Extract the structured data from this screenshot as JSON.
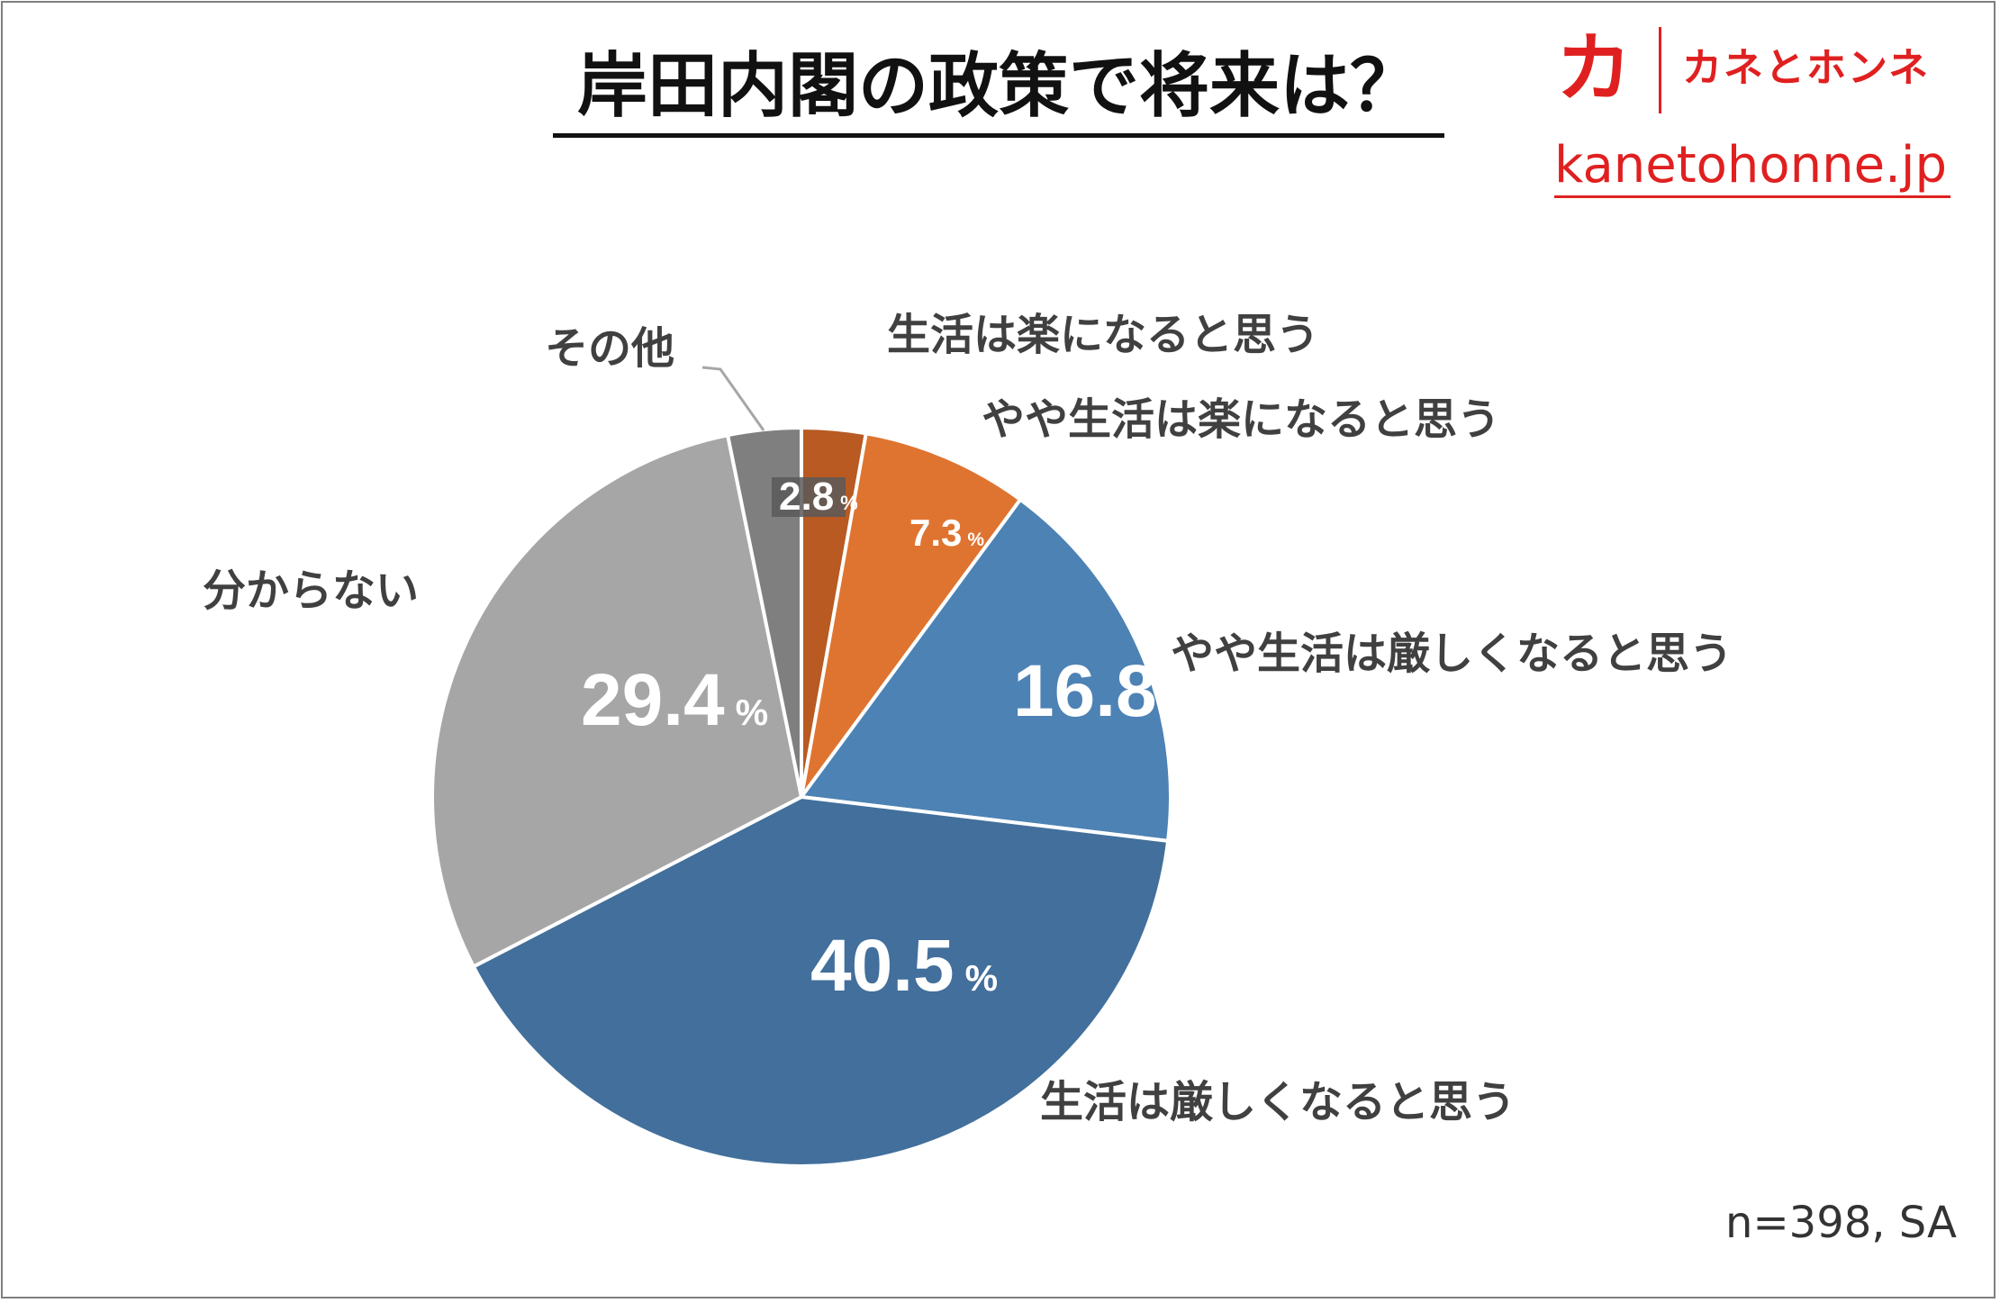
{
  "title": "岸田内閣の政策で将来は？",
  "logo": {
    "mark": "カ",
    "name": "カネとホンネ",
    "url": "kanetohonne.jp"
  },
  "note": "n=398, SA",
  "chart_data": {
    "type": "pie",
    "title": "岸田内閣の政策で将来は？",
    "unit": "%",
    "slices": [
      {
        "label": "生活は楽になると思う",
        "value": 2.8,
        "color": "#b85a22"
      },
      {
        "label": "やや生活は楽になると思う",
        "value": 7.3,
        "color": "#df7430"
      },
      {
        "label": "やや生活は厳しくなると思う",
        "value": 16.8,
        "color": "#4d82b4"
      },
      {
        "label": "生活は厳しくなると思う",
        "value": 40.5,
        "color": "#426f9b"
      },
      {
        "label": "分からない",
        "value": 29.4,
        "color": "#a6a6a6"
      },
      {
        "label": "その他",
        "value": 3.2,
        "color": "#7f7f7f"
      }
    ],
    "value_labels": [
      "2.8",
      "7.3",
      "16.8",
      "40.5",
      "29.4",
      ""
    ]
  }
}
